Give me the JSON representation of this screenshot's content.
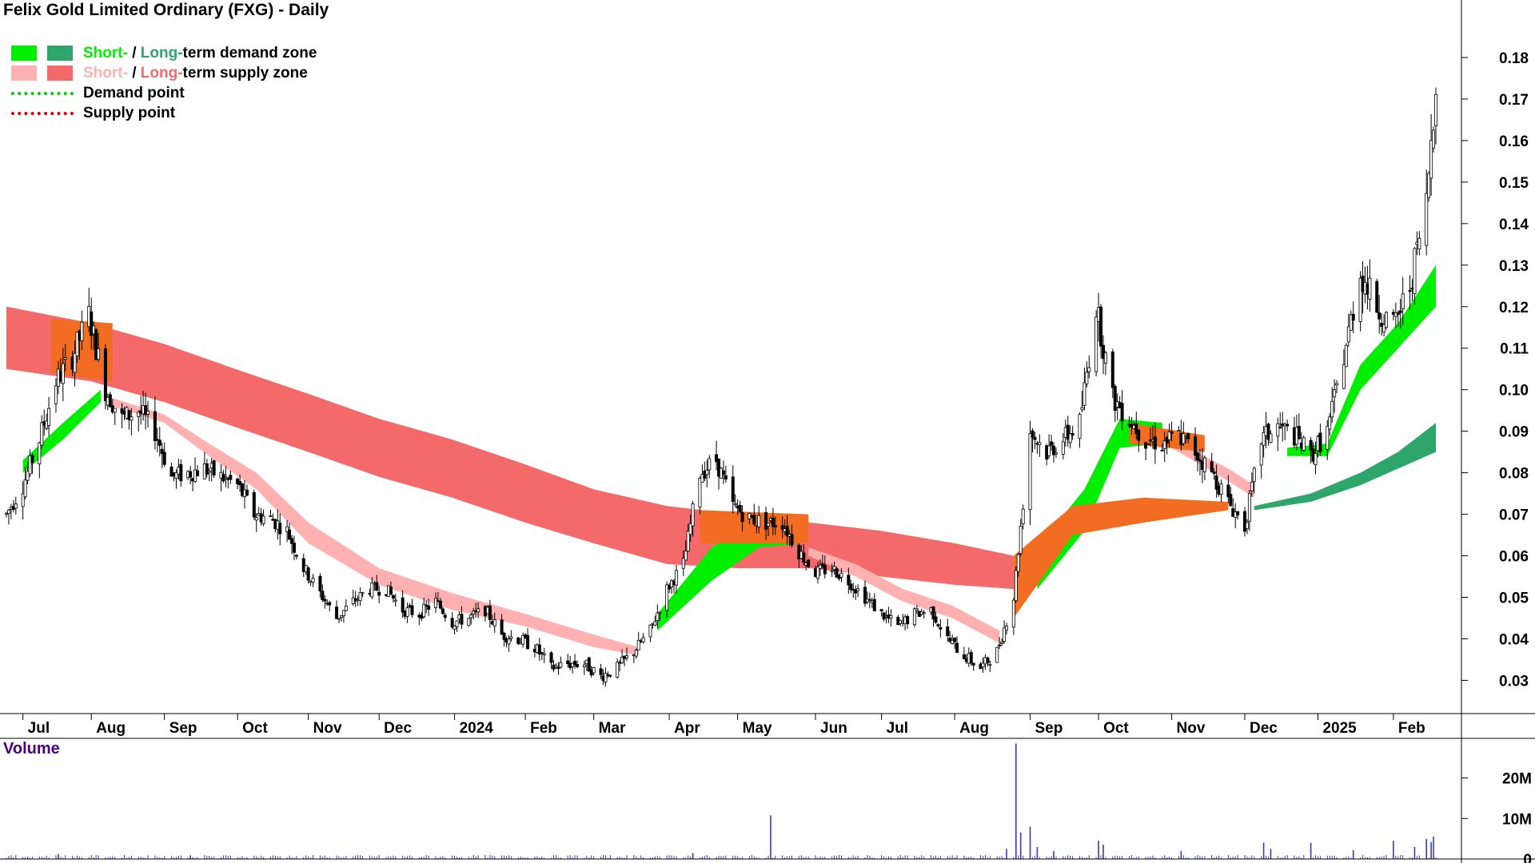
{
  "title": "Felix Gold Limited Ordinary (FXG) - Daily",
  "legend": {
    "demand_zone": {
      "short": "Short-",
      "sep": " / ",
      "long": "Long-",
      "rest": "term demand zone",
      "short_color": "#00ee00",
      "long_color": "#2ea56a"
    },
    "supply_zone": {
      "short": "Short-",
      "sep": " / ",
      "long": "Long-",
      "rest": "term supply zone",
      "short_color": "#ffb0b0",
      "long_color": "#f46a6a"
    },
    "demand_point": {
      "label": "Demand point",
      "color": "#00cc00"
    },
    "supply_point": {
      "label": "Supply point",
      "color": "#dd0000"
    }
  },
  "volume_panel": {
    "label": "Volume"
  },
  "colors": {
    "demand_short": "#00ee00",
    "demand_long": "#2ea56a",
    "supply_short": "#ffb0b0",
    "supply_long": "#f46a6a",
    "overlap": "#f26d22",
    "volume": "#3b3bb0",
    "axis": "#000000"
  },
  "chart_data": [
    {
      "type": "candlestick",
      "title": "Felix Gold Limited Ordinary (FXG) - Daily",
      "x_tick_labels": [
        "Jul",
        "Aug",
        "Sep",
        "Oct",
        "Nov",
        "Dec",
        "2024",
        "Feb",
        "Mar",
        "Apr",
        "May",
        "Jun",
        "Jul",
        "Aug",
        "Sep",
        "Oct",
        "Nov",
        "Dec",
        "2025",
        "Feb"
      ],
      "x_range": [
        "2023-06-26",
        "2025-02-21"
      ],
      "y_ticks": [
        0.03,
        0.04,
        0.05,
        0.06,
        0.07,
        0.08,
        0.09,
        0.1,
        0.11,
        0.12,
        0.13,
        0.14,
        0.15,
        0.16,
        0.17,
        0.18
      ],
      "y_tick_labels": [
        "0.03",
        "0.04",
        "0.05",
        "0.06",
        "0.07",
        "0.08",
        "0.09",
        "0.10",
        "0.11",
        "0.12",
        "0.13",
        "0.14",
        "0.15",
        "0.16",
        "0.17",
        "0.18"
      ],
      "ylim": [
        0.022,
        0.19
      ],
      "grid": false,
      "legend": "top-left",
      "price_path": [
        [
          "2023-06-26",
          0.07
        ],
        [
          "2023-07-03",
          0.077
        ],
        [
          "2023-07-10",
          0.088
        ],
        [
          "2023-07-17",
          0.102
        ],
        [
          "2023-07-24",
          0.108
        ],
        [
          "2023-07-31",
          0.118
        ],
        [
          "2023-08-07",
          0.1
        ],
        [
          "2023-08-14",
          0.093
        ],
        [
          "2023-08-21",
          0.095
        ],
        [
          "2023-08-28",
          0.09
        ],
        [
          "2023-09-04",
          0.079
        ],
        [
          "2023-09-11",
          0.08
        ],
        [
          "2023-09-18",
          0.081
        ],
        [
          "2023-09-25",
          0.079
        ],
        [
          "2023-10-02",
          0.077
        ],
        [
          "2023-10-09",
          0.07
        ],
        [
          "2023-10-16",
          0.069
        ],
        [
          "2023-10-23",
          0.066
        ],
        [
          "2023-10-30",
          0.057
        ],
        [
          "2023-11-06",
          0.051
        ],
        [
          "2023-11-13",
          0.045
        ],
        [
          "2023-11-20",
          0.049
        ],
        [
          "2023-11-27",
          0.052
        ],
        [
          "2023-12-04",
          0.052
        ],
        [
          "2023-12-11",
          0.047
        ],
        [
          "2023-12-18",
          0.046
        ],
        [
          "2023-12-25",
          0.049
        ],
        [
          "2024-01-01",
          0.044
        ],
        [
          "2024-01-08",
          0.045
        ],
        [
          "2024-01-15",
          0.047
        ],
        [
          "2024-01-22",
          0.041
        ],
        [
          "2024-01-29",
          0.04
        ],
        [
          "2024-02-05",
          0.038
        ],
        [
          "2024-02-12",
          0.033
        ],
        [
          "2024-02-19",
          0.034
        ],
        [
          "2024-02-26",
          0.034
        ],
        [
          "2024-03-04",
          0.031
        ],
        [
          "2024-03-11",
          0.033
        ],
        [
          "2024-03-18",
          0.037
        ],
        [
          "2024-03-25",
          0.042
        ],
        [
          "2024-04-01",
          0.052
        ],
        [
          "2024-04-08",
          0.058
        ],
        [
          "2024-04-15",
          0.08
        ],
        [
          "2024-04-22",
          0.083
        ],
        [
          "2024-04-29",
          0.072
        ],
        [
          "2024-05-06",
          0.069
        ],
        [
          "2024-05-13",
          0.068
        ],
        [
          "2024-05-20",
          0.068
        ],
        [
          "2024-05-27",
          0.061
        ],
        [
          "2024-06-03",
          0.056
        ],
        [
          "2024-06-10",
          0.057
        ],
        [
          "2024-06-17",
          0.054
        ],
        [
          "2024-06-24",
          0.05
        ],
        [
          "2024-07-01",
          0.046
        ],
        [
          "2024-07-08",
          0.043
        ],
        [
          "2024-07-15",
          0.046
        ],
        [
          "2024-07-22",
          0.047
        ],
        [
          "2024-07-29",
          0.04
        ],
        [
          "2024-08-05",
          0.036
        ],
        [
          "2024-08-12",
          0.033
        ],
        [
          "2024-08-19",
          0.037
        ],
        [
          "2024-08-26",
          0.05
        ],
        [
          "2024-09-02",
          0.09
        ],
        [
          "2024-09-09",
          0.085
        ],
        [
          "2024-09-16",
          0.088
        ],
        [
          "2024-09-23",
          0.092
        ],
        [
          "2024-09-30",
          0.12
        ],
        [
          "2024-10-07",
          0.098
        ],
        [
          "2024-10-14",
          0.093
        ],
        [
          "2024-10-21",
          0.088
        ],
        [
          "2024-10-28",
          0.087
        ],
        [
          "2024-11-04",
          0.089
        ],
        [
          "2024-11-11",
          0.085
        ],
        [
          "2024-11-18",
          0.08
        ],
        [
          "2024-11-25",
          0.073
        ],
        [
          "2024-12-02",
          0.067
        ],
        [
          "2024-12-09",
          0.088
        ],
        [
          "2024-12-16",
          0.091
        ],
        [
          "2024-12-23",
          0.089
        ],
        [
          "2024-12-30",
          0.084
        ],
        [
          "2025-01-06",
          0.09
        ],
        [
          "2025-01-13",
          0.108
        ],
        [
          "2025-01-20",
          0.128
        ],
        [
          "2025-01-27",
          0.12
        ],
        [
          "2025-02-03",
          0.115
        ],
        [
          "2025-02-10",
          0.125
        ],
        [
          "2025-02-17",
          0.145
        ],
        [
          "2025-02-21",
          0.175
        ]
      ],
      "zones": {
        "long_term_supply": [
          [
            "2023-06-26",
            0.105,
            0.12
          ],
          [
            "2023-08-01",
            0.102,
            0.116
          ],
          [
            "2023-09-01",
            0.097,
            0.111
          ],
          [
            "2023-10-01",
            0.091,
            0.105
          ],
          [
            "2023-11-01",
            0.085,
            0.099
          ],
          [
            "2023-12-01",
            0.079,
            0.093
          ],
          [
            "2024-01-01",
            0.074,
            0.088
          ],
          [
            "2024-02-01",
            0.068,
            0.082
          ],
          [
            "2024-03-01",
            0.063,
            0.076
          ],
          [
            "2024-04-01",
            0.058,
            0.072
          ],
          [
            "2024-05-01",
            0.057,
            0.07
          ],
          [
            "2024-06-01",
            0.057,
            0.068
          ],
          [
            "2024-07-01",
            0.055,
            0.066
          ],
          [
            "2024-08-01",
            0.053,
            0.063
          ],
          [
            "2024-08-26",
            0.052,
            0.06
          ]
        ],
        "short_term_supply": [
          [
            "2023-08-10",
            0.096,
            0.098
          ],
          [
            "2023-09-01",
            0.092,
            0.094
          ],
          [
            "2023-09-20",
            0.084,
            0.087
          ],
          [
            "2023-10-10",
            0.076,
            0.08
          ],
          [
            "2023-11-01",
            0.063,
            0.068
          ],
          [
            "2023-12-01",
            0.053,
            0.057
          ],
          [
            "2024-01-01",
            0.047,
            0.051
          ],
          [
            "2024-02-01",
            0.043,
            0.046
          ],
          [
            "2024-03-01",
            0.038,
            0.041
          ],
          [
            "2024-03-20",
            0.036,
            0.038
          ]
        ],
        "short_term_supply_2": [
          [
            "2024-05-31",
            0.06,
            0.062
          ],
          [
            "2024-06-20",
            0.055,
            0.058
          ],
          [
            "2024-07-10",
            0.049,
            0.052
          ],
          [
            "2024-07-31",
            0.045,
            0.048
          ],
          [
            "2024-08-20",
            0.039,
            0.042
          ]
        ],
        "short_term_supply_3": [
          [
            "2024-11-01",
            0.086,
            0.088
          ],
          [
            "2024-11-25",
            0.078,
            0.081
          ],
          [
            "2024-12-06",
            0.074,
            0.077
          ]
        ],
        "short_term_demand": [
          [
            "2023-07-03",
            0.08,
            0.083
          ],
          [
            "2023-07-20",
            0.088,
            0.092
          ],
          [
            "2023-08-05",
            0.097,
            0.1
          ],
          [
            "2024-03-28",
            0.042,
            0.046
          ],
          [
            "2024-04-20",
            0.054,
            0.062
          ],
          [
            "2024-05-10",
            0.062,
            0.069
          ],
          [
            "2024-05-28",
            0.063,
            0.067
          ],
          [
            "2024-09-05",
            0.052,
            0.062
          ],
          [
            "2024-09-25",
            0.066,
            0.076
          ],
          [
            "2024-10-10",
            0.086,
            0.093
          ],
          [
            "2024-10-28",
            0.087,
            0.092
          ],
          [
            "2024-12-20",
            0.084,
            0.086
          ],
          [
            "2025-01-06",
            0.084,
            0.087
          ],
          [
            "2025-01-20",
            0.1,
            0.106
          ],
          [
            "2025-02-05",
            0.11,
            0.116
          ],
          [
            "2025-02-21",
            0.12,
            0.13
          ]
        ],
        "long_term_demand": [
          [
            "2024-12-06",
            0.071,
            0.072
          ],
          [
            "2024-12-30",
            0.073,
            0.075
          ],
          [
            "2025-01-20",
            0.077,
            0.08
          ],
          [
            "2025-02-05",
            0.081,
            0.085
          ],
          [
            "2025-02-21",
            0.085,
            0.092
          ]
        ]
      }
    },
    {
      "type": "bar",
      "title": "Volume",
      "y_ticks": [
        0,
        10000000,
        20000000
      ],
      "y_tick_labels": [
        "0",
        "10M",
        "20M"
      ],
      "ylim": [
        0,
        29000000
      ],
      "baseline": 1000000,
      "spikes": [
        [
          "2023-07-18",
          1200000
        ],
        [
          "2023-09-12",
          900000
        ],
        [
          "2024-04-12",
          1500000
        ],
        [
          "2024-05-15",
          10800000
        ],
        [
          "2024-08-23",
          2500000
        ],
        [
          "2024-08-27",
          28500000
        ],
        [
          "2024-08-29",
          6500000
        ],
        [
          "2024-09-02",
          8000000
        ],
        [
          "2024-09-05",
          3000000
        ],
        [
          "2024-09-12",
          2000000
        ],
        [
          "2024-10-01",
          4500000
        ],
        [
          "2024-10-03",
          3500000
        ],
        [
          "2024-11-05",
          2000000
        ],
        [
          "2024-12-10",
          4000000
        ],
        [
          "2024-12-13",
          2500000
        ],
        [
          "2024-12-30",
          4000000
        ],
        [
          "2025-01-17",
          2200000
        ],
        [
          "2025-02-03",
          4500000
        ],
        [
          "2025-02-12",
          3000000
        ],
        [
          "2025-02-17",
          5000000
        ],
        [
          "2025-02-19",
          4200000
        ],
        [
          "2025-02-20",
          5500000
        ]
      ]
    }
  ]
}
